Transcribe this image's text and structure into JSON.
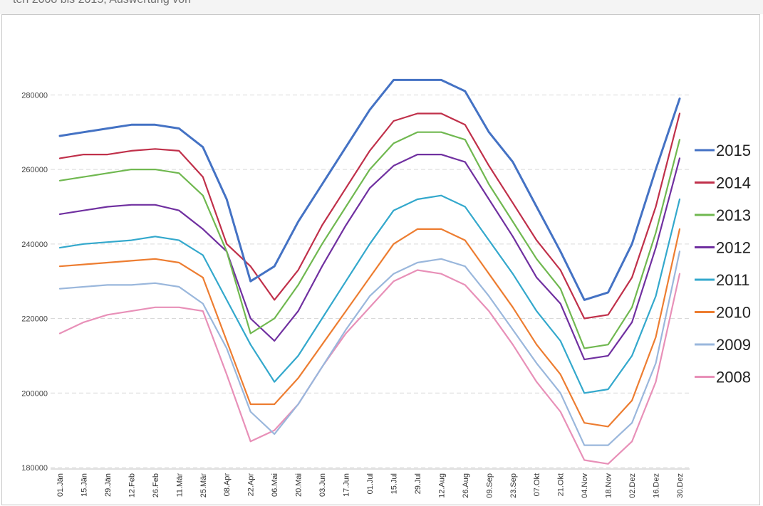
{
  "caption": {
    "text": "ten 2008 bis 2015, Auswertung von"
  },
  "chart_data": {
    "type": "line",
    "title": "",
    "xlabel": "",
    "ylabel": "",
    "ylim": [
      180000,
      290000
    ],
    "yticks": [
      180000,
      200000,
      220000,
      240000,
      260000,
      280000
    ],
    "grid": true,
    "legend": "right",
    "categories": [
      "01.Jän",
      "15.Jän",
      "29.Jän",
      "12.Feb",
      "26.Feb",
      "11.Mär",
      "25.Mär",
      "08.Apr",
      "22.Apr",
      "06.Mai",
      "20.Mai",
      "03.Jun",
      "17.Jun",
      "01.Jul",
      "15.Jul",
      "29.Jul",
      "12.Aug",
      "26.Aug",
      "09.Sep",
      "23.Sep",
      "07.Okt",
      "21.Okt",
      "04.Nov",
      "18.Nov",
      "02.Dez",
      "16.Dez",
      "30.Dez"
    ],
    "series": [
      {
        "name": "2015",
        "color": "#4472c4",
        "values": [
          269000,
          270000,
          271000,
          272000,
          272000,
          271000,
          266000,
          252000,
          230000,
          234000,
          246000,
          256000,
          266000,
          276000,
          284000,
          284000,
          284000,
          281000,
          270000,
          262000,
          250000,
          238000,
          225000,
          227000,
          240000,
          260000,
          279000
        ]
      },
      {
        "name": "2014",
        "color": "#c0304a",
        "values": [
          263000,
          264000,
          264000,
          265000,
          265500,
          265000,
          258000,
          240000,
          234000,
          225000,
          233000,
          245000,
          255000,
          265000,
          273000,
          275000,
          275000,
          272000,
          261000,
          251000,
          241000,
          233000,
          220000,
          221000,
          231000,
          250000,
          275000
        ]
      },
      {
        "name": "2013",
        "color": "#70b850",
        "values": [
          257000,
          258000,
          259000,
          260000,
          260000,
          259000,
          253000,
          238000,
          216000,
          220000,
          229000,
          240000,
          250000,
          260000,
          267000,
          270000,
          270000,
          268000,
          256000,
          246000,
          236000,
          228000,
          212000,
          213000,
          223000,
          243000,
          268000
        ]
      },
      {
        "name": "2012",
        "color": "#7030a0",
        "values": [
          248000,
          249000,
          250000,
          250500,
          250500,
          249000,
          244000,
          238000,
          220000,
          214000,
          222000,
          234000,
          245000,
          255000,
          261000,
          264000,
          264000,
          262000,
          252000,
          242000,
          231000,
          224000,
          209000,
          210000,
          219000,
          239000,
          263000
        ]
      },
      {
        "name": "2011",
        "color": "#33a8cc",
        "values": [
          239000,
          240000,
          240500,
          241000,
          242000,
          241000,
          237000,
          225000,
          213000,
          203000,
          210000,
          220000,
          230000,
          240000,
          249000,
          252000,
          253000,
          250000,
          241000,
          232000,
          222000,
          214000,
          200000,
          201000,
          210000,
          226000,
          252000
        ]
      },
      {
        "name": "2010",
        "color": "#ed7d31",
        "values": [
          234000,
          234500,
          235000,
          235500,
          236000,
          235000,
          231000,
          214000,
          197000,
          197000,
          204000,
          213000,
          222000,
          231000,
          240000,
          244000,
          244000,
          241000,
          232000,
          223000,
          213000,
          205000,
          192000,
          191000,
          198000,
          215000,
          244000
        ]
      },
      {
        "name": "2009",
        "color": "#9ab7dc",
        "values": [
          228000,
          228500,
          229000,
          229000,
          229500,
          228500,
          224000,
          212000,
          195000,
          189000,
          197000,
          207000,
          217000,
          226000,
          232000,
          235000,
          236000,
          234000,
          226000,
          217000,
          208000,
          200000,
          186000,
          186000,
          192000,
          208000,
          238000
        ]
      },
      {
        "name": "2008",
        "color": "#e890b8",
        "values": [
          216000,
          219000,
          221000,
          222000,
          223000,
          223000,
          222000,
          205000,
          187000,
          190000,
          197000,
          207000,
          216000,
          223000,
          230000,
          233000,
          232000,
          229000,
          222000,
          213000,
          203000,
          195000,
          182000,
          181000,
          187000,
          203000,
          232000
        ]
      }
    ]
  }
}
